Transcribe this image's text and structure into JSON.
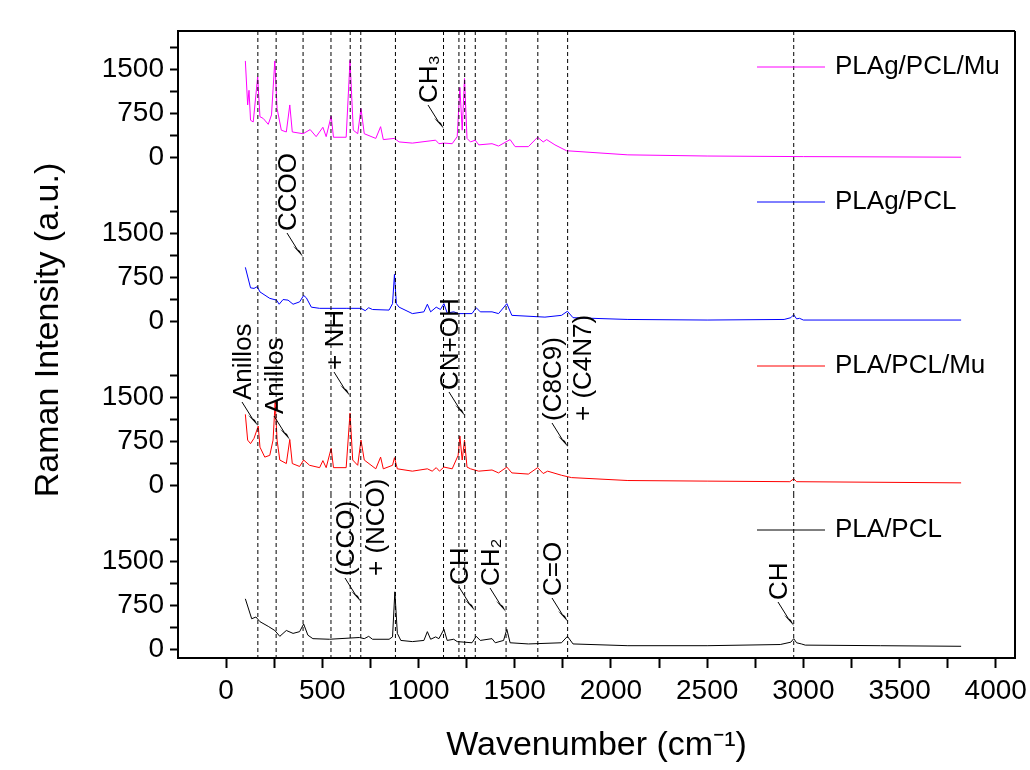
{
  "chart_data": [
    {
      "type": "line",
      "legend": "top right",
      "tick_labels": "y",
      "xlim": [
        -250,
        4100
      ],
      "ylim": [
        -150,
        2150
      ],
      "yticks": [
        0,
        {
          "value": 375,
          "label": null
        },
        750,
        {
          "value": 1125,
          "label": null
        },
        1500,
        {
          "value": 1875,
          "label": null
        }
      ],
      "series": [
        {
          "name": "PLAg/PCL/Mu",
          "color": "#ff00ff",
          "x": [
            100,
            112,
            119,
            127,
            141,
            164,
            176,
            193,
            219,
            236,
            253,
            265,
            287,
            313,
            331,
            344,
            400,
            437,
            468,
            503,
            520,
            546,
            558,
            624,
            644,
            661,
            684,
            701,
            718,
            778,
            803,
            817,
            875,
            899,
            968,
            1089,
            1106,
            1132,
            1175,
            1201,
            1215,
            1227,
            1239,
            1252,
            1270,
            1295,
            1313,
            1382,
            1416,
            1476,
            1502,
            1571,
            1619,
            1648,
            1666,
            1709,
            1769,
            2088,
            2500,
            3000,
            3820
          ],
          "values": [
            1640,
            890,
            1140,
            630,
            600,
            1370,
            690,
            660,
            560,
            720,
            1640,
            830,
            460,
            430,
            890,
            430,
            400,
            470,
            350,
            510,
            350,
            700,
            340,
            340,
            1650,
            460,
            400,
            830,
            400,
            320,
            520,
            300,
            320,
            260,
            240,
            290,
            230,
            240,
            230,
            350,
            1190,
            460,
            1340,
            320,
            260,
            290,
            210,
            230,
            190,
            300,
            180,
            180,
            340,
            260,
            300,
            210,
            110,
            40,
            20,
            10,
            0
          ]
        }
      ],
      "ref_lines": [
        {
          "axis": "x",
          "value": 165,
          "line_style": "dashed",
          "color": "#000000"
        },
        {
          "axis": "x",
          "value": 260,
          "line_style": "dashed",
          "color": "#000000"
        },
        {
          "axis": "x",
          "value": 400,
          "line_style": "dashed",
          "color": "#000000"
        },
        {
          "axis": "x",
          "value": 545,
          "line_style": "dashed",
          "color": "#000000"
        },
        {
          "axis": "x",
          "value": 645,
          "line_style": "dashed",
          "color": "#000000"
        },
        {
          "axis": "x",
          "value": 700,
          "line_style": "dashed",
          "color": "#000000"
        },
        {
          "axis": "x",
          "value": 880,
          "line_style": "dashed",
          "color": "#000000"
        },
        {
          "axis": "x",
          "value": 1130,
          "line_style": "dashed",
          "color": "#000000"
        },
        {
          "axis": "x",
          "value": 1210,
          "line_style": "dashed",
          "color": "#000000"
        },
        {
          "axis": "x",
          "value": 1240,
          "line_style": "dashed",
          "color": "#000000"
        },
        {
          "axis": "x",
          "value": 1295,
          "line_style": "dashed",
          "color": "#000000"
        },
        {
          "axis": "x",
          "value": 1455,
          "line_style": "dashed",
          "color": "#000000"
        },
        {
          "axis": "x",
          "value": 1620,
          "line_style": "dashed",
          "color": "#000000"
        },
        {
          "axis": "x",
          "value": 1775,
          "line_style": "dashed",
          "color": "#000000"
        },
        {
          "axis": "x",
          "value": 2950,
          "line_style": "dashed",
          "color": "#000000"
        }
      ],
      "annotations": [
        {
          "text": "CH₃",
          "x": 1130,
          "y": 480
        }
      ]
    },
    {
      "type": "line",
      "legend": "top right",
      "tick_labels": "y",
      "xlim": [
        -250,
        4100
      ],
      "ylim": [
        -150,
        2650
      ],
      "ylabel": "Raman Intensity (a.u.)",
      "yticks": [
        0,
        {
          "value": 375,
          "label": null
        },
        750,
        {
          "value": 1125,
          "label": null
        },
        1500,
        {
          "value": 1875,
          "label": null
        }
      ],
      "series": [
        {
          "name": "PLAg/PCL",
          "color": "#0000ff",
          "x": [
            100,
            127,
            145,
            162,
            176,
            227,
            262,
            276,
            296,
            322,
            348,
            382,
            403,
            417,
            443,
            486,
            624,
            701,
            723,
            741,
            761,
            847,
            865,
            875,
            885,
            899,
            968,
            1028,
            1046,
            1063,
            1092,
            1114,
            1132,
            1149,
            1183,
            1209,
            1278,
            1300,
            1321,
            1382,
            1416,
            1459,
            1485,
            1657,
            1743,
            1774,
            1803,
            2088,
            2500,
            2900,
            2935,
            2950,
            2965,
            2980,
            3000,
            3820
          ],
          "values": [
            920,
            570,
            560,
            590,
            500,
            390,
            360,
            290,
            370,
            360,
            290,
            330,
            440,
            400,
            240,
            220,
            220,
            220,
            180,
            230,
            200,
            190,
            300,
            800,
            300,
            240,
            130,
            160,
            290,
            160,
            240,
            200,
            300,
            140,
            160,
            130,
            130,
            230,
            160,
            160,
            130,
            300,
            100,
            70,
            100,
            170,
            60,
            30,
            20,
            30,
            60,
            110,
            40,
            50,
            20,
            20
          ]
        }
      ],
      "ref_lines": [
        {
          "axis": "x",
          "value": 165,
          "line_style": "dashed",
          "color": "#000000"
        },
        {
          "axis": "x",
          "value": 260,
          "line_style": "dashed",
          "color": "#000000"
        },
        {
          "axis": "x",
          "value": 400,
          "line_style": "dashed",
          "color": "#000000"
        },
        {
          "axis": "x",
          "value": 545,
          "line_style": "dashed",
          "color": "#000000"
        },
        {
          "axis": "x",
          "value": 645,
          "line_style": "dashed",
          "color": "#000000"
        },
        {
          "axis": "x",
          "value": 700,
          "line_style": "dashed",
          "color": "#000000"
        },
        {
          "axis": "x",
          "value": 880,
          "line_style": "dashed",
          "color": "#000000"
        },
        {
          "axis": "x",
          "value": 1130,
          "line_style": "dashed",
          "color": "#000000"
        },
        {
          "axis": "x",
          "value": 1210,
          "line_style": "dashed",
          "color": "#000000"
        },
        {
          "axis": "x",
          "value": 1240,
          "line_style": "dashed",
          "color": "#000000"
        },
        {
          "axis": "x",
          "value": 1295,
          "line_style": "dashed",
          "color": "#000000"
        },
        {
          "axis": "x",
          "value": 1455,
          "line_style": "dashed",
          "color": "#000000"
        },
        {
          "axis": "x",
          "value": 1620,
          "line_style": "dashed",
          "color": "#000000"
        },
        {
          "axis": "x",
          "value": 1775,
          "line_style": "dashed",
          "color": "#000000"
        },
        {
          "axis": "x",
          "value": 2950,
          "line_style": "dashed",
          "color": "#000000"
        }
      ],
      "annotations": [
        {
          "text": "CCOO",
          "x": 400,
          "y": 1100
        }
      ]
    },
    {
      "type": "line",
      "legend": "top right",
      "tick_labels": "y",
      "xlim": [
        -250,
        4100
      ],
      "ylim": [
        -150,
        2650
      ],
      "yticks": [
        0,
        {
          "value": 375,
          "label": null
        },
        750,
        {
          "value": 1125,
          "label": null
        },
        1500,
        {
          "value": 1875,
          "label": null
        }
      ],
      "series": [
        {
          "name": "PLA/PCL/Mu",
          "color": "#ff0000",
          "x": [
            100,
            112,
            127,
            145,
            167,
            176,
            201,
            227,
            244,
            255,
            265,
            279,
            313,
            331,
            344,
            382,
            403,
            434,
            486,
            503,
            520,
            546,
            558,
            624,
            644,
            658,
            684,
            701,
            718,
            778,
            803,
            817,
            865,
            875,
            890,
            968,
            1046,
            1071,
            1092,
            1109,
            1132,
            1175,
            1206,
            1215,
            1227,
            1239,
            1252,
            1270,
            1313,
            1382,
            1416,
            1459,
            1485,
            1571,
            1619,
            1648,
            1671,
            1743,
            1795,
            2088,
            2500,
            2930,
            2950,
            2965,
            3820
          ],
          "values": [
            1210,
            770,
            710,
            800,
            1010,
            650,
            480,
            510,
            770,
            1420,
            770,
            430,
            370,
            780,
            370,
            320,
            430,
            340,
            300,
            420,
            300,
            630,
            300,
            300,
            1230,
            430,
            340,
            770,
            430,
            280,
            480,
            280,
            340,
            470,
            280,
            240,
            280,
            240,
            300,
            240,
            310,
            280,
            510,
            840,
            430,
            770,
            310,
            280,
            240,
            260,
            210,
            310,
            210,
            190,
            300,
            200,
            240,
            170,
            130,
            80,
            70,
            60,
            110,
            60,
            40
          ]
        }
      ],
      "ref_lines": [
        {
          "axis": "x",
          "value": 165,
          "line_style": "dashed",
          "color": "#000000"
        },
        {
          "axis": "x",
          "value": 260,
          "line_style": "dashed",
          "color": "#000000"
        },
        {
          "axis": "x",
          "value": 400,
          "line_style": "dashed",
          "color": "#000000"
        },
        {
          "axis": "x",
          "value": 545,
          "line_style": "dashed",
          "color": "#000000"
        },
        {
          "axis": "x",
          "value": 645,
          "line_style": "dashed",
          "color": "#000000"
        },
        {
          "axis": "x",
          "value": 700,
          "line_style": "dashed",
          "color": "#000000"
        },
        {
          "axis": "x",
          "value": 880,
          "line_style": "dashed",
          "color": "#000000"
        },
        {
          "axis": "x",
          "value": 1130,
          "line_style": "dashed",
          "color": "#000000"
        },
        {
          "axis": "x",
          "value": 1210,
          "line_style": "dashed",
          "color": "#000000"
        },
        {
          "axis": "x",
          "value": 1240,
          "line_style": "dashed",
          "color": "#000000"
        },
        {
          "axis": "x",
          "value": 1295,
          "line_style": "dashed",
          "color": "#000000"
        },
        {
          "axis": "x",
          "value": 1455,
          "line_style": "dashed",
          "color": "#000000"
        },
        {
          "axis": "x",
          "value": 1620,
          "line_style": "dashed",
          "color": "#000000"
        },
        {
          "axis": "x",
          "value": 1775,
          "line_style": "dashed",
          "color": "#000000"
        },
        {
          "axis": "x",
          "value": 2950,
          "line_style": "dashed",
          "color": "#000000"
        }
      ],
      "annotations": [
        {
          "text": "Anillos",
          "x": 165,
          "y": 1010
        },
        {
          "text": "Anillos",
          "x": 331,
          "y": 780
        },
        {
          "text": "+ NH",
          "x": 645,
          "y": 1530
        },
        {
          "text": "CN+OH",
          "x": 1240,
          "y": 1180
        },
        {
          "text": "(C8C9)",
          "x": 1775,
          "y": 650
        },
        {
          "text": "+ (C4N7)",
          "x": 1775,
          "y": 650
        }
      ]
    },
    {
      "type": "line",
      "legend": "top right",
      "xlim": [
        -250,
        4100
      ],
      "ylim": [
        -150,
        2650
      ],
      "xlabel": "Wavenumber (cm⁻¹)",
      "xticks": [
        0,
        {
          "value": 250,
          "label": null
        },
        500,
        {
          "value": 750,
          "label": null
        },
        1000,
        {
          "value": 1250,
          "label": null
        },
        1500,
        {
          "value": 1750,
          "label": null
        },
        2000,
        {
          "value": 2250,
          "label": null
        },
        2500,
        {
          "value": 2750,
          "label": null
        },
        3000,
        {
          "value": 3250,
          "label": null
        },
        3500,
        {
          "value": 3750,
          "label": null
        },
        4000
      ],
      "yticks": [
        0,
        {
          "value": 375,
          "label": null
        },
        750,
        {
          "value": 1125,
          "label": null
        },
        1500,
        {
          "value": 1875,
          "label": null
        }
      ],
      "series": [
        {
          "name": "PLA/PCL",
          "color": "#000000",
          "x": [
            100,
            133,
            155,
            176,
            219,
            253,
            279,
            313,
            348,
            382,
            403,
            425,
            451,
            537,
            692,
            718,
            741,
            761,
            847,
            865,
            877,
            890,
            908,
            968,
            1028,
            1046,
            1063,
            1089,
            1106,
            1132,
            1149,
            1183,
            1201,
            1278,
            1300,
            1321,
            1382,
            1399,
            1442,
            1459,
            1476,
            1571,
            1743,
            1774,
            1803,
            2088,
            2500,
            2880,
            2935,
            2950,
            2965,
            2990,
            3010,
            3400,
            3820
          ],
          "values": [
            860,
            520,
            550,
            470,
            390,
            320,
            220,
            320,
            270,
            300,
            430,
            240,
            180,
            170,
            200,
            180,
            220,
            170,
            170,
            210,
            980,
            270,
            150,
            130,
            150,
            300,
            170,
            210,
            180,
            340,
            150,
            170,
            130,
            110,
            220,
            150,
            180,
            110,
            150,
            340,
            110,
            90,
            110,
            220,
            90,
            60,
            60,
            80,
            120,
            180,
            110,
            90,
            70,
            60,
            50
          ]
        }
      ],
      "ref_lines": [
        {
          "axis": "x",
          "value": 165,
          "line_style": "dashed",
          "color": "#000000"
        },
        {
          "axis": "x",
          "value": 260,
          "line_style": "dashed",
          "color": "#000000"
        },
        {
          "axis": "x",
          "value": 400,
          "line_style": "dashed",
          "color": "#000000"
        },
        {
          "axis": "x",
          "value": 545,
          "line_style": "dashed",
          "color": "#000000"
        },
        {
          "axis": "x",
          "value": 645,
          "line_style": "dashed",
          "color": "#000000"
        },
        {
          "axis": "x",
          "value": 700,
          "line_style": "dashed",
          "color": "#000000"
        },
        {
          "axis": "x",
          "value": 880,
          "line_style": "dashed",
          "color": "#000000"
        },
        {
          "axis": "x",
          "value": 1130,
          "line_style": "dashed",
          "color": "#000000"
        },
        {
          "axis": "x",
          "value": 1210,
          "line_style": "dashed",
          "color": "#000000"
        },
        {
          "axis": "x",
          "value": 1240,
          "line_style": "dashed",
          "color": "#000000"
        },
        {
          "axis": "x",
          "value": 1295,
          "line_style": "dashed",
          "color": "#000000"
        },
        {
          "axis": "x",
          "value": 1455,
          "line_style": "dashed",
          "color": "#000000"
        },
        {
          "axis": "x",
          "value": 1620,
          "line_style": "dashed",
          "color": "#000000"
        },
        {
          "axis": "x",
          "value": 1775,
          "line_style": "dashed",
          "color": "#000000"
        },
        {
          "axis": "x",
          "value": 2950,
          "line_style": "dashed",
          "color": "#000000"
        }
      ],
      "annotations": [
        {
          "text": "(CCO)",
          "x": 700,
          "y": 800
        },
        {
          "text": "+ (NCO)",
          "x": 700,
          "y": 800
        },
        {
          "text": "CH",
          "x": 1295,
          "y": 660
        },
        {
          "text": "CH₂",
          "x": 1455,
          "y": 630
        },
        {
          "text": "C=O",
          "x": 1775,
          "y": 460
        },
        {
          "text": "CH",
          "x": 2950,
          "y": 390
        }
      ]
    }
  ]
}
